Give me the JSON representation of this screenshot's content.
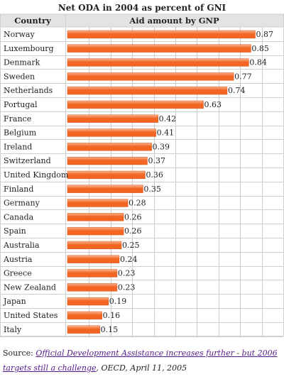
{
  "chart_data": {
    "type": "bar",
    "orientation": "horizontal",
    "title": "Net ODA in 2004 as percent of GNI",
    "category_header": "Country",
    "value_header": "Aid amount by GNP",
    "xlim": [
      0,
      1.0
    ],
    "grid": true,
    "categories": [
      "Norway",
      "Luxembourg",
      "Denmark",
      "Sweden",
      "Netherlands",
      "Portugal",
      "France",
      "Belgium",
      "Ireland",
      "Switzerland",
      "United Kingdom",
      "Finland",
      "Germany",
      "Canada",
      "Spain",
      "Australia",
      "Austria",
      "Greece",
      "New Zealand",
      "Japan",
      "United States",
      "Italy"
    ],
    "values": [
      0.87,
      0.85,
      0.84,
      0.77,
      0.74,
      0.63,
      0.42,
      0.41,
      0.39,
      0.37,
      0.36,
      0.35,
      0.28,
      0.26,
      0.26,
      0.25,
      0.24,
      0.23,
      0.23,
      0.19,
      0.16,
      0.15
    ],
    "value_labels": [
      "0.87",
      "0.85",
      "0.84",
      "0.77",
      "0.74",
      "0.63",
      "0.42",
      "0.41",
      "0.39",
      "0.37",
      "0.36",
      "0.35",
      "0.28",
      "0.26",
      "0.26",
      "0.25",
      "0.24",
      "0.23",
      "0.23",
      "0.19",
      "0.16",
      "0.15"
    ],
    "colors": {
      "bar": "#f26522",
      "bar_light": "#f9b48f",
      "header_bg": "#e3e3e3",
      "row_border": "#cfcfcf",
      "grid": "#cccccc"
    }
  },
  "source": {
    "prefix": "Source: ",
    "link_text": "Official Development Assistance increases further - but 2006 targets still a challenge",
    "rest": ", OECD, April 11, 2005"
  }
}
